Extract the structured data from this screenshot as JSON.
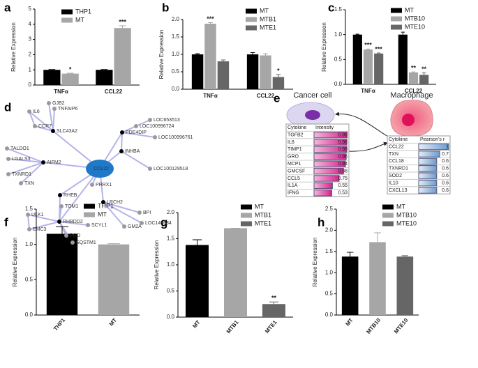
{
  "chart_data": [
    {
      "panel": "a",
      "type": "bar",
      "ylabel": "Relative Expression",
      "categories": [
        "TNFα",
        "CCL22"
      ],
      "series": [
        {
          "name": "THP1",
          "color": "#000000",
          "values": [
            1.0,
            1.0
          ],
          "errors": [
            0.02,
            0.02
          ]
        },
        {
          "name": "MT",
          "color": "#a6a6a6",
          "values": [
            0.75,
            3.75
          ],
          "errors": [
            0.03,
            0.15
          ]
        }
      ],
      "ylim": [
        0,
        5
      ],
      "yticks": [
        0,
        1,
        2,
        3,
        4,
        5
      ],
      "annotations": [
        {
          "series": 1,
          "index": 0,
          "text": "*"
        },
        {
          "series": 1,
          "index": 1,
          "text": "***"
        }
      ]
    },
    {
      "panel": "b",
      "type": "bar",
      "ylabel": "Relative Expression",
      "categories": [
        "TNFα",
        "CCL22"
      ],
      "series": [
        {
          "name": "MT",
          "color": "#000000",
          "values": [
            1.0,
            1.0
          ],
          "errors": [
            0.02,
            0.05
          ]
        },
        {
          "name": "MTB1",
          "color": "#a6a6a6",
          "values": [
            1.88,
            0.97
          ],
          "errors": [
            0.03,
            0.05
          ]
        },
        {
          "name": "MTE1",
          "color": "#666666",
          "values": [
            0.8,
            0.35
          ],
          "errors": [
            0.04,
            0.07
          ]
        }
      ],
      "ylim": [
        0,
        2
      ],
      "yticks": [
        {
          "value": 0,
          "label": "0.0"
        },
        0.5,
        {
          "value": 1,
          "label": "1.0"
        },
        1.5,
        {
          "value": 2,
          "label": "2.0"
        }
      ],
      "annotations": [
        {
          "series": 1,
          "index": 0,
          "text": "***"
        },
        {
          "series": 2,
          "index": 1,
          "text": "*"
        }
      ]
    },
    {
      "panel": "c",
      "type": "bar",
      "ylabel": "Relative Expression",
      "categories": [
        "TNFα",
        "CCL22"
      ],
      "series": [
        {
          "name": "MT",
          "color": "#000000",
          "values": [
            1.0,
            1.0
          ],
          "errors": [
            0.01,
            0.05
          ]
        },
        {
          "name": "MTB10",
          "color": "#a6a6a6",
          "values": [
            0.7,
            0.24
          ],
          "errors": [
            0.01,
            0.01
          ]
        },
        {
          "name": "MTE10",
          "color": "#666666",
          "values": [
            0.62,
            0.19
          ],
          "errors": [
            0.01,
            0.04
          ]
        }
      ],
      "ylim": [
        0,
        1.5
      ],
      "yticks": [
        {
          "value": 0,
          "label": "0.0"
        },
        0.5,
        {
          "value": 1,
          "label": "1.0"
        },
        1.5
      ],
      "annotations": [
        {
          "series": 1,
          "index": 0,
          "text": "***"
        },
        {
          "series": 2,
          "index": 0,
          "text": "***"
        },
        {
          "series": 1,
          "index": 1,
          "text": "**"
        },
        {
          "series": 2,
          "index": 1,
          "text": "**"
        }
      ]
    },
    {
      "panel": "f",
      "type": "bar",
      "ylabel": "Relative Expression",
      "categories": [
        "THP1",
        "MT"
      ],
      "values": [
        1.15,
        1.0
      ],
      "errors": [
        0.1,
        0.01
      ],
      "colors": [
        "#000000",
        "#a6a6a6"
      ],
      "ylim": [
        0,
        1.5
      ],
      "yticks": [
        {
          "value": 0,
          "label": "0.0"
        },
        0.5,
        {
          "value": 1,
          "label": "1.0"
        },
        1.5
      ]
    },
    {
      "panel": "g",
      "type": "bar",
      "ylabel": "Relative Expression",
      "categories": [
        "MT",
        "MTB1",
        "MTE1"
      ],
      "values": [
        1.38,
        1.7,
        0.25
      ],
      "errors": [
        0.1,
        0,
        0.04
      ],
      "colors": [
        "#000000",
        "#a6a6a6",
        "#666666"
      ],
      "ylim": [
        0,
        2
      ],
      "yticks": [
        {
          "value": 0,
          "label": "0.0"
        },
        0.5,
        {
          "value": 1,
          "label": "1.0"
        },
        1.5,
        {
          "value": 2,
          "label": "2.0"
        }
      ],
      "annotations": [
        {
          "index": 2,
          "text": "**"
        }
      ]
    },
    {
      "panel": "h",
      "type": "bar",
      "ylabel": "Relative Expression",
      "categories": [
        "MT",
        "MTB10",
        "MTE10"
      ],
      "values": [
        1.38,
        1.72,
        1.38
      ],
      "errors": [
        0.1,
        0.22,
        0.02
      ],
      "colors": [
        "#000000",
        "#a6a6a6",
        "#666666"
      ],
      "ylim": [
        0,
        2.5
      ],
      "yticks": [
        {
          "value": 0,
          "label": "0.0"
        },
        0.5,
        {
          "value": 1,
          "label": "1.0"
        },
        1.5,
        {
          "value": 2,
          "label": "2.0"
        },
        2.5
      ]
    }
  ],
  "network": {
    "panel": "d",
    "nodes": [
      "CCL22",
      "SLC43A2",
      "PDE4DIP",
      "INHBA",
      "AIFM2",
      "RHEB",
      "LRCH2",
      "RHBDD2",
      "GJB2",
      "IL6",
      "TNFAIP6",
      "CCR7",
      "TALDO1",
      "LGALS3",
      "TXNRD1",
      "TXN",
      "LOC653513",
      "LOC100996724",
      "LOC100996761",
      "LOC100129518",
      "PRRX1",
      "TOM1",
      "ULK1",
      "EMC3",
      "PGD",
      "SQSTM1",
      "SCYL1",
      "BPI",
      "LOC149684",
      "GM2A"
    ]
  },
  "schematic": {
    "panel": "e",
    "cancer_label": "Cancer cell",
    "macrophage_label": "Macrophage",
    "intensity_table": {
      "columns": [
        "Cytokine",
        "Intensity"
      ],
      "rows": [
        [
          "TGFB2",
          0.99
        ],
        [
          "IL8",
          0.98
        ],
        [
          "TIMP1",
          0.98
        ],
        [
          "GRO",
          0.96
        ],
        [
          "MCP1",
          0.94
        ],
        [
          "GMCSF",
          0.88
        ],
        [
          "CCL5",
          0.75
        ],
        [
          "IL1A",
          0.55
        ],
        [
          "IFNG",
          0.53
        ]
      ]
    },
    "pearson_table": {
      "columns": [
        "Cytokine",
        "Pearson's r"
      ],
      "rows": [
        [
          "CCL22",
          1
        ],
        [
          "TXN",
          0.7
        ],
        [
          "CCL18",
          0.6
        ],
        [
          "TXNRD1",
          0.6
        ],
        [
          "SOD2",
          0.6
        ],
        [
          "IL10",
          0.6
        ],
        [
          "CXCL13",
          0.6
        ]
      ]
    }
  }
}
